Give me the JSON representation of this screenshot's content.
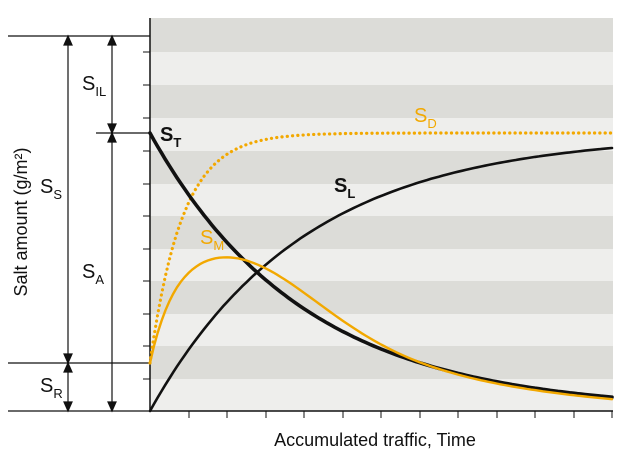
{
  "diagram": {
    "xlabel": "Accumulated traffic, Time",
    "ylabel": "Salt amount (g/m²)",
    "colors": {
      "black": "#111111",
      "orange": "#f2a800",
      "band_dark": "#dcdcd8",
      "band_light": "#eeeeec"
    },
    "curves": {
      "ST": {
        "main": "S",
        "sub": "T"
      },
      "SD": {
        "main": "S",
        "sub": "D"
      },
      "SL": {
        "main": "S",
        "sub": "L"
      },
      "SM": {
        "main": "S",
        "sub": "M"
      }
    },
    "brackets": {
      "SIL": {
        "main": "S",
        "sub": "IL"
      },
      "SS": {
        "main": "S",
        "sub": "S"
      },
      "SA": {
        "main": "S",
        "sub": "A"
      },
      "SR": {
        "main": "S",
        "sub": "R"
      }
    }
  }
}
